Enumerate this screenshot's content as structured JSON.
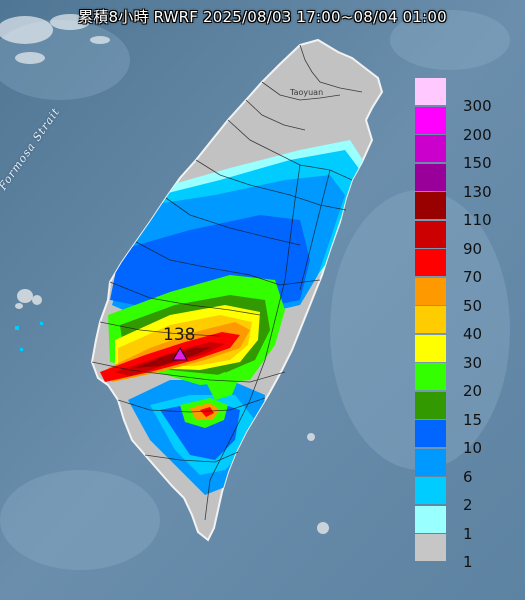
{
  "title": "累積8小時 RWRF 2025/08/03 17:00~08/04 01:00",
  "strait_label": "Formosa Strait",
  "city_label": "Taoyuan",
  "peak": {
    "value": "138",
    "marker_color": "#e020e0"
  },
  "legend": [
    {
      "label": "300",
      "color": "#ffc8ff"
    },
    {
      "label": "200",
      "color": "#ff00ff"
    },
    {
      "label": "150",
      "color": "#cc00cc"
    },
    {
      "label": "130",
      "color": "#990099"
    },
    {
      "label": "110",
      "color": "#990000"
    },
    {
      "label": "90",
      "color": "#cc0000"
    },
    {
      "label": "70",
      "color": "#ff0000"
    },
    {
      "label": "50",
      "color": "#ff9900"
    },
    {
      "label": "40",
      "color": "#ffcc00"
    },
    {
      "label": "30",
      "color": "#ffff00"
    },
    {
      "label": "20",
      "color": "#33ff00"
    },
    {
      "label": "15",
      "color": "#339900"
    },
    {
      "label": "10",
      "color": "#0066ff"
    },
    {
      "label": "6",
      "color": "#0099ff"
    },
    {
      "label": "2",
      "color": "#00ccff"
    },
    {
      "label": "1",
      "color": "#99ffff"
    },
    {
      "label": "1",
      "color": "#c6c6c6"
    }
  ]
}
